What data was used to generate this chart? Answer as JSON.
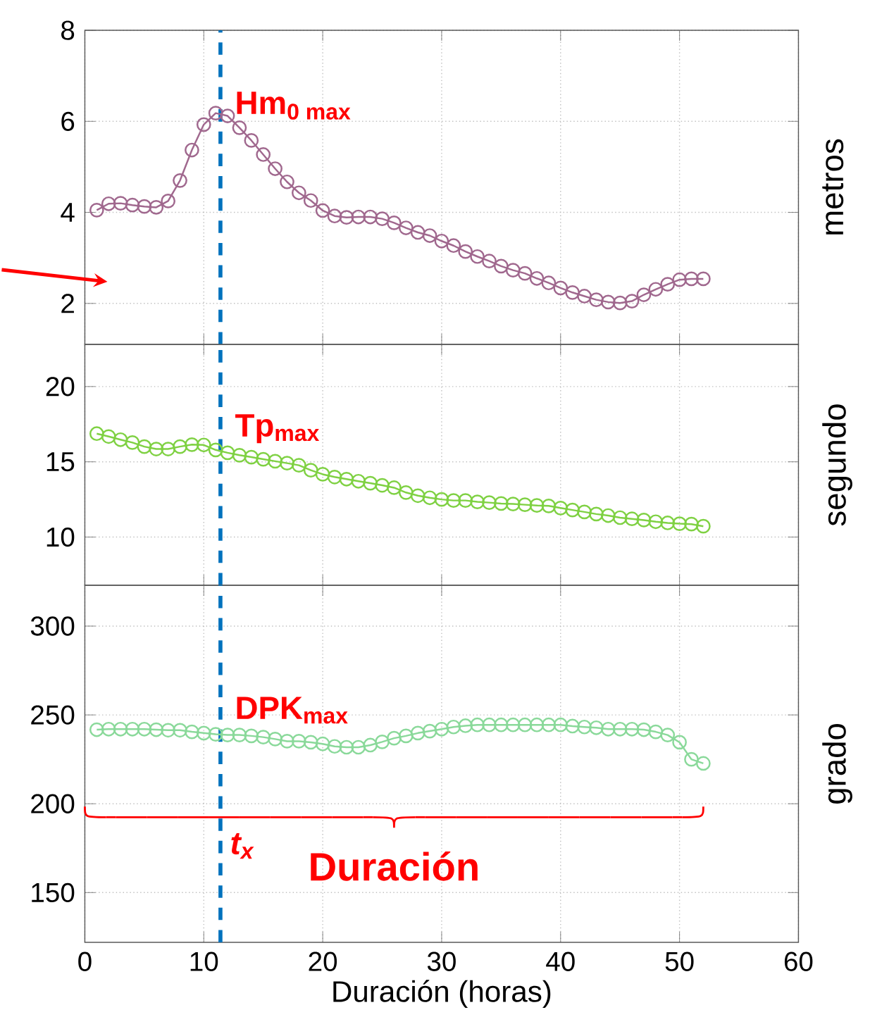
{
  "chart_data": [
    {
      "type": "line",
      "x": [
        1,
        2,
        3,
        4,
        5,
        6,
        7,
        8,
        9,
        10,
        11,
        12,
        13,
        14,
        15,
        16,
        17,
        18,
        19,
        20,
        21,
        22,
        23,
        24,
        25,
        26,
        27,
        28,
        29,
        30,
        31,
        32,
        33,
        34,
        35,
        36,
        37,
        38,
        39,
        40,
        41,
        42,
        43,
        44,
        45,
        46,
        47,
        48,
        49,
        50,
        51,
        52
      ],
      "ylabel": "metros",
      "xlim": [
        0,
        60
      ],
      "xticks": [
        0,
        10,
        20,
        30,
        40,
        50,
        60
      ],
      "ylim": [
        1.1,
        8
      ],
      "yticks": [
        2,
        4,
        6,
        8
      ],
      "grid": true,
      "tick_labels": "y",
      "marker": "circle",
      "line_style": "solid",
      "series": [
        {
          "color": "#a0688e",
          "values": [
            4.05,
            4.19,
            4.2,
            4.16,
            4.13,
            4.11,
            4.25,
            4.7,
            5.37,
            5.93,
            6.18,
            6.12,
            5.86,
            5.58,
            5.27,
            4.96,
            4.67,
            4.43,
            4.26,
            4.04,
            3.92,
            3.89,
            3.9,
            3.9,
            3.86,
            3.77,
            3.66,
            3.56,
            3.49,
            3.37,
            3.27,
            3.14,
            3.03,
            2.93,
            2.82,
            2.73,
            2.66,
            2.55,
            2.45,
            2.34,
            2.24,
            2.16,
            2.08,
            2.03,
            2.01,
            2.05,
            2.19,
            2.31,
            2.42,
            2.52,
            2.54,
            2.54
          ]
        }
      ],
      "ref_lines": [
        {
          "axis": "x",
          "value": 11.4,
          "color": "#0072bd",
          "line_style": "dashed"
        }
      ],
      "annotations": [
        "Hm$_{0 max}$"
      ]
    },
    {
      "type": "line",
      "x": [
        1,
        2,
        3,
        4,
        5,
        6,
        7,
        8,
        9,
        10,
        11,
        12,
        13,
        14,
        15,
        16,
        17,
        18,
        19,
        20,
        21,
        22,
        23,
        24,
        25,
        26,
        27,
        28,
        29,
        30,
        31,
        32,
        33,
        34,
        35,
        36,
        37,
        38,
        39,
        40,
        41,
        42,
        43,
        44,
        45,
        46,
        47,
        48,
        49,
        50,
        51,
        52
      ],
      "ylabel": "segundo",
      "xlim": [
        0,
        60
      ],
      "xticks": [
        0,
        10,
        20,
        30,
        40,
        50,
        60
      ],
      "ylim": [
        6.8,
        22.8
      ],
      "yticks": [
        10,
        15,
        20
      ],
      "grid": true,
      "tick_labels": "y",
      "marker": "circle",
      "line_style": "solid",
      "series": [
        {
          "color": "#7fd143",
          "values": [
            16.87,
            16.68,
            16.47,
            16.28,
            16.01,
            15.85,
            15.85,
            16.01,
            16.14,
            16.12,
            15.79,
            15.6,
            15.44,
            15.31,
            15.17,
            15.04,
            14.91,
            14.77,
            14.44,
            14.17,
            13.99,
            13.85,
            13.71,
            13.58,
            13.44,
            13.28,
            12.96,
            12.75,
            12.61,
            12.5,
            12.43,
            12.43,
            12.34,
            12.29,
            12.23,
            12.2,
            12.15,
            12.1,
            12.07,
            11.93,
            11.8,
            11.67,
            11.53,
            11.43,
            11.29,
            11.21,
            11.13,
            11.02,
            10.94,
            10.89,
            10.86,
            10.72
          ]
        }
      ],
      "ref_lines": [
        {
          "axis": "x",
          "value": 11.4,
          "color": "#0072bd",
          "line_style": "dashed"
        }
      ],
      "annotations": [
        "Tp$_{max}$"
      ]
    },
    {
      "type": "line",
      "x": [
        1,
        2,
        3,
        4,
        5,
        6,
        7,
        8,
        9,
        10,
        11,
        12,
        13,
        14,
        15,
        16,
        17,
        18,
        19,
        20,
        21,
        22,
        23,
        24,
        25,
        26,
        27,
        28,
        29,
        30,
        31,
        32,
        33,
        34,
        35,
        36,
        37,
        38,
        39,
        40,
        41,
        42,
        43,
        44,
        45,
        46,
        47,
        48,
        49,
        50,
        51,
        52
      ],
      "xlabel": "Duración (horas)",
      "ylabel": "grado",
      "xlim": [
        0,
        60
      ],
      "xticks": [
        0,
        10,
        20,
        30,
        40,
        50,
        60
      ],
      "ylim": [
        122,
        323
      ],
      "yticks": [
        150,
        200,
        250,
        300
      ],
      "grid": true,
      "marker": "circle",
      "line_style": "solid",
      "series": [
        {
          "color": "#8ad99a",
          "values": [
            241.7,
            242,
            242,
            242,
            242,
            241.7,
            241.4,
            241.4,
            240.5,
            239.8,
            239.1,
            238.7,
            238.7,
            238.2,
            237.5,
            236.4,
            235.2,
            235.2,
            234.6,
            233.7,
            232.3,
            231.8,
            231.8,
            233,
            234.8,
            236.9,
            238.2,
            239.8,
            240.9,
            242,
            243.2,
            243.9,
            244.4,
            244.4,
            244.4,
            244.4,
            244.4,
            244.4,
            244.4,
            244.4,
            243.7,
            243.2,
            242.8,
            242,
            242,
            242,
            241.7,
            240.5,
            238.7,
            234.6,
            225,
            222.7
          ]
        }
      ],
      "ref_lines": [
        {
          "axis": "x",
          "value": 11.4,
          "color": "#0072bd",
          "line_style": "dashed",
          "label": "t$_{x}$"
        }
      ],
      "annotations": [
        "DPK$_{max}$",
        "Duración"
      ]
    }
  ]
}
